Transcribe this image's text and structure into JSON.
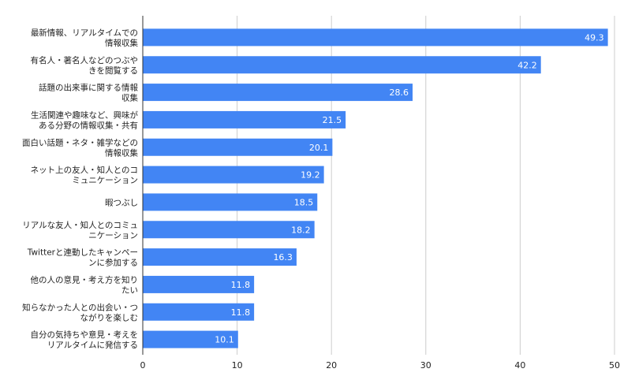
{
  "colors": {
    "bar": "#4285f4",
    "grid": "#cccccc",
    "axis": "#333333",
    "text": "#222222",
    "bar_label": "#ffffff"
  },
  "chart_data": {
    "type": "bar",
    "orientation": "horizontal",
    "categories": [
      [
        "最新情報、リアルタイムでの",
        "情報収集"
      ],
      [
        "有名人・著名人などのつぶや",
        "きを閲覧する"
      ],
      [
        "話題の出来事に関する情報",
        "収集"
      ],
      [
        "生活関連や趣味など、興味が",
        "ある分野の情報収集・共有"
      ],
      [
        "面白い話題・ネタ・雑学などの",
        "情報収集"
      ],
      [
        "ネット上の友人・知人とのコ",
        "ミュニケーション"
      ],
      [
        "暇つぶし"
      ],
      [
        "リアルな友人・知人とのコミュ",
        "ニケーション"
      ],
      [
        "Twitterと連動したキャンペー",
        "ンに参加する"
      ],
      [
        "他の人の意見・考え方を知り",
        "たい"
      ],
      [
        "知らなかった人との出会い・つ",
        "ながりを楽しむ"
      ],
      [
        "自分の気持ちや意見・考えを",
        "リアルタイムに発信する"
      ]
    ],
    "values": [
      49.3,
      42.2,
      28.6,
      21.5,
      20.1,
      19.2,
      18.5,
      18.2,
      16.3,
      11.8,
      11.8,
      10.1
    ],
    "data_labels": [
      "49.3",
      "42.2",
      "28.6",
      "21.5",
      "20.1",
      "19.2",
      "18.5",
      "18.2",
      "16.3",
      "11.8",
      "11.8",
      "10.1"
    ],
    "x_ticks": [
      0,
      10,
      20,
      30,
      40,
      50
    ],
    "x_tick_labels": [
      "0",
      "10",
      "20",
      "30",
      "40",
      "50"
    ],
    "xlim": [
      0,
      50
    ],
    "title": "",
    "xlabel": "",
    "ylabel": "",
    "grid": true,
    "legend": "none"
  }
}
